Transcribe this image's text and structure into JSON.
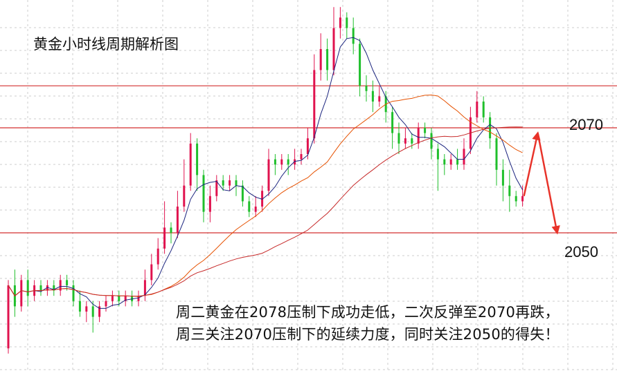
{
  "chart_data": {
    "type": "candlestick",
    "title": "黄金小时线周期解析图",
    "y_range": [
      2032,
      2093
    ],
    "horizontal_levels": [
      {
        "price": 2078,
        "label": ""
      },
      {
        "price": 2070,
        "label": "2070"
      },
      {
        "price": 2050,
        "label": "2050"
      }
    ],
    "candles": [
      [
        2028,
        2040,
        2027,
        2041
      ],
      [
        2040,
        2036,
        2034,
        2043
      ],
      [
        2036,
        2041,
        2035,
        2042
      ],
      [
        2041,
        2038,
        2036,
        2043
      ],
      [
        2038,
        2040,
        2037,
        2041
      ],
      [
        2040,
        2039,
        2038,
        2041
      ],
      [
        2039,
        2040,
        2038,
        2041
      ],
      [
        2040,
        2039,
        2038,
        2041
      ],
      [
        2039,
        2041,
        2038,
        2042
      ],
      [
        2041,
        2040,
        2039,
        2042
      ],
      [
        2040,
        2037,
        2036,
        2041
      ],
      [
        2037,
        2035,
        2034,
        2039
      ],
      [
        2035,
        2036,
        2033,
        2037
      ],
      [
        2036,
        2034,
        2031,
        2037
      ],
      [
        2034,
        2036,
        2033,
        2037
      ],
      [
        2036,
        2037,
        2035,
        2038
      ],
      [
        2037,
        2038,
        2036,
        2039
      ],
      [
        2038,
        2037,
        2036,
        2039
      ],
      [
        2037,
        2038,
        2036,
        2039
      ],
      [
        2038,
        2037,
        2036,
        2039
      ],
      [
        2037,
        2038,
        2036,
        2039
      ],
      [
        2038,
        2041,
        2037,
        2043
      ],
      [
        2041,
        2044,
        2040,
        2046
      ],
      [
        2044,
        2047,
        2043,
        2049
      ],
      [
        2047,
        2051,
        2046,
        2056
      ],
      [
        2051,
        2050,
        2048,
        2052
      ],
      [
        2050,
        2055,
        2049,
        2058
      ],
      [
        2055,
        2059,
        2054,
        2064
      ],
      [
        2059,
        2067,
        2058,
        2069
      ],
      [
        2067,
        2061,
        2058,
        2068
      ],
      [
        2061,
        2054,
        2052,
        2062
      ],
      [
        2054,
        2057,
        2052,
        2059
      ],
      [
        2057,
        2060,
        2056,
        2061
      ],
      [
        2060,
        2059,
        2058,
        2061
      ],
      [
        2059,
        2060,
        2058,
        2061
      ],
      [
        2060,
        2059,
        2057,
        2061
      ],
      [
        2059,
        2056,
        2055,
        2060
      ],
      [
        2056,
        2054,
        2053,
        2057
      ],
      [
        2054,
        2055,
        2053,
        2057
      ],
      [
        2055,
        2058,
        2054,
        2059
      ],
      [
        2058,
        2064,
        2057,
        2066
      ],
      [
        2064,
        2063,
        2061,
        2065
      ],
      [
        2063,
        2064,
        2062,
        2065
      ],
      [
        2064,
        2063,
        2061,
        2065
      ],
      [
        2063,
        2064,
        2062,
        2066
      ],
      [
        2064,
        2065,
        2063,
        2066
      ],
      [
        2065,
        2068,
        2064,
        2070
      ],
      [
        2068,
        2081,
        2067,
        2084
      ],
      [
        2081,
        2085,
        2079,
        2088
      ],
      [
        2085,
        2081,
        2079,
        2087
      ],
      [
        2081,
        2089,
        2080,
        2093
      ],
      [
        2089,
        2091,
        2087,
        2093
      ],
      [
        2091,
        2089,
        2087,
        2092
      ],
      [
        2089,
        2086,
        2084,
        2091
      ],
      [
        2086,
        2078,
        2076,
        2087
      ],
      [
        2078,
        2077,
        2075,
        2080
      ],
      [
        2077,
        2075,
        2073,
        2079
      ],
      [
        2075,
        2076,
        2074,
        2078
      ],
      [
        2076,
        2073,
        2071,
        2077
      ],
      [
        2073,
        2069,
        2066,
        2074
      ],
      [
        2069,
        2067,
        2065,
        2071
      ],
      [
        2067,
        2068,
        2066,
        2070
      ],
      [
        2068,
        2067,
        2066,
        2069
      ],
      [
        2067,
        2070,
        2066,
        2071
      ],
      [
        2070,
        2069,
        2068,
        2071
      ],
      [
        2069,
        2066,
        2064,
        2070
      ],
      [
        2066,
        2064,
        2058,
        2067
      ],
      [
        2064,
        2063,
        2061,
        2065
      ],
      [
        2063,
        2064,
        2062,
        2065
      ],
      [
        2064,
        2063,
        2062,
        2066
      ],
      [
        2063,
        2066,
        2062,
        2068
      ],
      [
        2066,
        2072,
        2065,
        2074
      ],
      [
        2072,
        2075,
        2071,
        2077
      ],
      [
        2075,
        2072,
        2071,
        2076
      ],
      [
        2072,
        2068,
        2066,
        2073
      ],
      [
        2068,
        2062,
        2059,
        2069
      ],
      [
        2062,
        2059,
        2056,
        2064
      ],
      [
        2059,
        2057,
        2054,
        2062
      ],
      [
        2057,
        2056,
        2055,
        2058
      ],
      [
        2056,
        2057,
        2055,
        2059
      ]
    ],
    "moving_averages": [
      {
        "name": "",
        "color": "#1a237e",
        "period": 5
      },
      {
        "name": "",
        "color": "#e65100",
        "period": 20
      },
      {
        "name": "",
        "color": "#c62828",
        "period": 40
      }
    ],
    "projection": {
      "color": "#e8332a",
      "points": [
        [
          2057,
          ""
        ],
        [
          2069,
          ""
        ],
        [
          2050,
          ""
        ]
      ]
    },
    "annotation_lines": [
      "周二黄金在2078压制下成功走低，二次反弹至2070再跌，",
      "周三关注2070压制下的延续力度，同时关注2050的得失！"
    ]
  },
  "colors": {
    "up": "#e0124e",
    "down": "#1fbf2b",
    "level_line": "#d32f2f",
    "grid": "#cccccc"
  }
}
